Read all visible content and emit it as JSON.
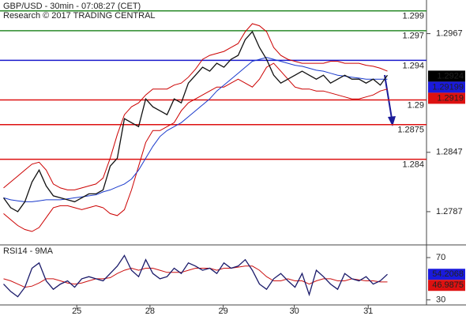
{
  "chart_data": [
    {
      "type": "line",
      "title": "GBP/USD - 30min - 07:08:27 (CET)",
      "subtitle": "Research © 2017 TRADING CENTRAL",
      "xlim": [
        -0.5,
        59.5
      ],
      "ylim": [
        1.2755,
        1.3001
      ],
      "yticks": [
        1.2967,
        1.2847,
        1.2787
      ],
      "x": [
        0,
        1,
        2,
        3,
        4,
        5,
        6,
        7,
        8,
        9,
        10,
        11,
        12,
        13,
        14,
        15,
        16,
        17,
        18,
        19,
        20,
        21,
        22,
        23,
        24,
        25,
        26,
        27,
        28,
        29,
        30,
        31,
        32,
        33,
        34,
        35,
        36,
        37,
        38,
        39,
        40,
        41,
        42,
        43,
        44,
        45,
        46,
        47,
        48,
        49,
        50,
        51,
        52,
        53,
        54
      ],
      "series": [
        {
          "color": "#cc0000",
          "values": [
            1.2811,
            1.2817,
            1.2823,
            1.2829,
            1.2835,
            1.2837,
            1.2829,
            1.2815,
            1.2811,
            1.2809,
            1.2809,
            1.2811,
            1.2813,
            1.2815,
            1.2821,
            1.2841,
            1.2865,
            1.2885,
            1.2893,
            1.2897,
            1.2905,
            1.2911,
            1.2911,
            1.2911,
            1.2915,
            1.2917,
            1.2923,
            1.2931,
            1.2941,
            1.2945,
            1.2947,
            1.2949,
            1.2953,
            1.2957,
            1.2969,
            1.2977,
            1.2975,
            1.2969,
            1.2953,
            1.2945,
            1.2941,
            1.2939,
            1.2937,
            1.2937,
            1.2937,
            1.2937,
            1.2939,
            1.2939,
            1.2937,
            1.2937,
            1.2937,
            1.2935,
            1.2934,
            1.2932,
            1.2929
          ]
        },
        {
          "color": "#cc0000",
          "values": [
            1.2785,
            1.2779,
            1.2773,
            1.2769,
            1.2767,
            1.2771,
            1.2781,
            1.2791,
            1.2793,
            1.2793,
            1.2791,
            1.2789,
            1.2791,
            1.2793,
            1.2791,
            1.2785,
            1.2783,
            1.2789,
            1.2809,
            1.2833,
            1.2857,
            1.2869,
            1.2869,
            1.2873,
            1.2877,
            1.2889,
            1.2897,
            1.2901,
            1.2905,
            1.2909,
            1.2913,
            1.2913,
            1.2917,
            1.2921,
            1.2917,
            1.2913,
            1.2921,
            1.2933,
            1.2937,
            1.2929,
            1.2921,
            1.2913,
            1.2911,
            1.2911,
            1.2909,
            1.2909,
            1.2907,
            1.2905,
            1.2903,
            1.2901,
            1.2901,
            1.2903,
            1.2905,
            1.2909,
            1.2911
          ]
        },
        {
          "color": "#1a3acc",
          "values": [
            1.2801,
            1.2799,
            1.2798,
            1.2797,
            1.2797,
            1.2798,
            1.2799,
            1.2799,
            1.2799,
            1.28,
            1.2801,
            1.2802,
            1.2803,
            1.2804,
            1.2807,
            1.2809,
            1.2812,
            1.2815,
            1.282,
            1.2829,
            1.2841,
            1.2853,
            1.2863,
            1.2869,
            1.2873,
            1.2877,
            1.2883,
            1.2889,
            1.2895,
            1.2901,
            1.2909,
            1.2915,
            1.2921,
            1.2927,
            1.2933,
            1.2939,
            1.2941,
            1.2943,
            1.2941,
            1.2939,
            1.2937,
            1.2935,
            1.2934,
            1.2932,
            1.293,
            1.2929,
            1.2927,
            1.2925,
            1.2924,
            1.2923,
            1.2922,
            1.2921,
            1.2921,
            1.2921,
            1.2921
          ]
        },
        {
          "color": "#111111",
          "values": [
            1.2801,
            1.2791,
            1.2787,
            1.2797,
            1.2817,
            1.2829,
            1.2813,
            1.2803,
            1.2801,
            1.2799,
            1.2797,
            1.2801,
            1.2805,
            1.2805,
            1.2809,
            1.2833,
            1.2841,
            1.2881,
            1.2877,
            1.2873,
            1.2901,
            1.2893,
            1.2889,
            1.2885,
            1.2901,
            1.2897,
            1.2917,
            1.2925,
            1.2933,
            1.2929,
            1.2937,
            1.2933,
            1.2941,
            1.2945,
            1.2961,
            1.2969,
            1.2953,
            1.2941,
            1.2925,
            1.2917,
            1.2921,
            1.2925,
            1.2929,
            1.2925,
            1.2921,
            1.2925,
            1.2917,
            1.2921,
            1.2925,
            1.2921,
            1.2921,
            1.2917,
            1.2921,
            1.2915,
            1.2925
          ]
        }
      ],
      "levels": [
        {
          "value": 1.299,
          "color": "#2a8a2a"
        },
        {
          "value": 1.297,
          "color": "#2a8a2a"
        },
        {
          "value": 1.294,
          "color": "#1a1acc"
        },
        {
          "value": 1.29,
          "color": "#dd1111"
        },
        {
          "value": 1.2875,
          "color": "#dd1111"
        },
        {
          "value": 1.284,
          "color": "#dd1111"
        }
      ],
      "tags": [
        {
          "value": 1.2924,
          "color": "#000000"
        },
        {
          "value": 1.29199,
          "color": "#1a1add"
        },
        {
          "value": 1.2919,
          "color": "#dd1111"
        }
      ]
    },
    {
      "type": "line",
      "title": "RSI14 - 9MA",
      "xlim": [
        -0.5,
        59.5
      ],
      "ylim": [
        26,
        80.5
      ],
      "yticks": [
        70,
        30
      ],
      "xticks": [
        {
          "value": 10.3,
          "label": "25"
        },
        {
          "value": 20.6,
          "label": "28"
        },
        {
          "value": 30.9,
          "label": "29"
        },
        {
          "value": 40.9,
          "label": "30"
        },
        {
          "value": 51.3,
          "label": "31"
        }
      ],
      "x": [
        0,
        1,
        2,
        3,
        4,
        5,
        6,
        7,
        8,
        9,
        10,
        11,
        12,
        13,
        14,
        15,
        16,
        17,
        18,
        19,
        20,
        21,
        22,
        23,
        24,
        25,
        26,
        27,
        28,
        29,
        30,
        31,
        32,
        33,
        34,
        35,
        36,
        37,
        38,
        39,
        40,
        41,
        42,
        43,
        44,
        45,
        46,
        47,
        48,
        49,
        50,
        51,
        52,
        53,
        54
      ],
      "series": [
        {
          "color": "#cc1111",
          "values": [
            50,
            48,
            45,
            42,
            43,
            46,
            50,
            50,
            48,
            46,
            45,
            46,
            48,
            50,
            50,
            51,
            55,
            58,
            60,
            58,
            60,
            60,
            58,
            56,
            56,
            56,
            58,
            60,
            60,
            60,
            58,
            60,
            60,
            61,
            62,
            62,
            58,
            52,
            48,
            48,
            50,
            48,
            48,
            45,
            48,
            50,
            50,
            48,
            48,
            50,
            49,
            48,
            48,
            47,
            46.9875
          ]
        },
        {
          "color": "#1a1a6a",
          "values": [
            45,
            38,
            33,
            42,
            60,
            65,
            48,
            40,
            45,
            48,
            42,
            50,
            52,
            50,
            48,
            55,
            62,
            72,
            58,
            52,
            68,
            55,
            50,
            52,
            60,
            55,
            65,
            62,
            58,
            60,
            55,
            65,
            60,
            62,
            68,
            58,
            45,
            40,
            50,
            55,
            48,
            42,
            55,
            35,
            58,
            52,
            45,
            40,
            55,
            50,
            48,
            52,
            45,
            48,
            54.2068
          ]
        }
      ],
      "tags": [
        {
          "value": 54.2068,
          "color": "#1a1add"
        },
        {
          "value": 46.9875,
          "color": "#dd1111"
        }
      ]
    }
  ]
}
